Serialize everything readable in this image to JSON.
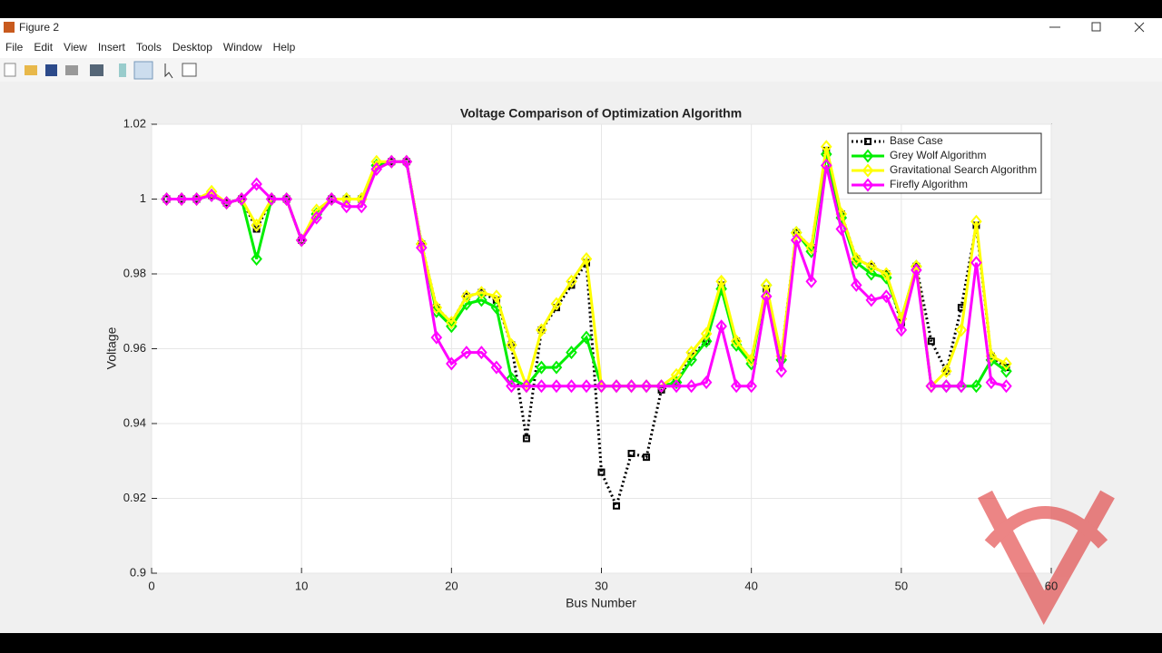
{
  "window": {
    "title": "Figure 2",
    "menu": [
      "File",
      "Edit",
      "View",
      "Insert",
      "Tools",
      "Desktop",
      "Window",
      "Help"
    ]
  },
  "chart_data": {
    "type": "line",
    "title": "Voltage Comparison of Optimization Algorithm",
    "x_label": "Bus Number",
    "y_label": "Voltage",
    "x": [
      1,
      2,
      3,
      4,
      5,
      6,
      7,
      8,
      9,
      10,
      11,
      12,
      13,
      14,
      15,
      16,
      17,
      18,
      19,
      20,
      21,
      22,
      23,
      24,
      25,
      26,
      27,
      28,
      29,
      30,
      31,
      32,
      33,
      34,
      35,
      36,
      37,
      38,
      39,
      40,
      41,
      42,
      43,
      44,
      45,
      46,
      47,
      48,
      49,
      50,
      51,
      52,
      53,
      54,
      55,
      56,
      57
    ],
    "series": [
      {
        "name": "Base Case",
        "color": "#000000",
        "values": [
          1.0,
          1.0,
          1.0,
          1.001,
          0.999,
          1.0,
          0.992,
          1.0,
          1.0,
          0.989,
          0.996,
          1.0,
          1.0,
          1.0,
          1.009,
          1.01,
          1.01,
          0.988,
          0.971,
          0.967,
          0.974,
          0.975,
          0.973,
          0.961,
          0.936,
          0.965,
          0.971,
          0.977,
          0.983,
          0.927,
          0.918,
          0.932,
          0.931,
          0.949,
          0.951,
          0.958,
          0.962,
          0.977,
          0.962,
          0.957,
          0.976,
          0.958,
          0.991,
          0.987,
          1.013,
          0.996,
          0.984,
          0.982,
          0.98,
          0.967,
          0.982,
          0.962,
          0.954,
          0.971,
          0.993,
          0.958,
          0.955
        ]
      },
      {
        "name": "Grey Wolf Algorithm",
        "color": "#00ee00",
        "values": [
          1.0,
          1.0,
          1.0,
          1.001,
          0.999,
          1.0,
          0.984,
          1.0,
          1.0,
          0.989,
          0.996,
          1.0,
          1.0,
          1.0,
          1.009,
          1.01,
          1.01,
          0.988,
          0.97,
          0.966,
          0.972,
          0.973,
          0.971,
          0.952,
          0.95,
          0.955,
          0.955,
          0.959,
          0.963,
          0.95,
          0.95,
          0.95,
          0.95,
          0.95,
          0.951,
          0.957,
          0.962,
          0.976,
          0.961,
          0.956,
          0.977,
          0.957,
          0.991,
          0.986,
          1.012,
          0.995,
          0.983,
          0.98,
          0.979,
          0.968,
          0.982,
          0.95,
          0.95,
          0.95,
          0.95,
          0.957,
          0.954
        ]
      },
      {
        "name": "Gravitational Search Algorithm",
        "color": "#ffff00",
        "values": [
          1.0,
          1.0,
          1.0,
          1.002,
          0.999,
          1.0,
          0.993,
          1.0,
          1.0,
          0.989,
          0.997,
          1.0,
          1.0,
          1.0,
          1.01,
          1.01,
          1.01,
          0.988,
          0.971,
          0.967,
          0.974,
          0.975,
          0.974,
          0.961,
          0.95,
          0.965,
          0.972,
          0.978,
          0.984,
          0.95,
          0.95,
          0.95,
          0.95,
          0.95,
          0.953,
          0.959,
          0.964,
          0.978,
          0.962,
          0.957,
          0.977,
          0.958,
          0.991,
          0.987,
          1.014,
          0.996,
          0.984,
          0.982,
          0.98,
          0.968,
          0.982,
          0.95,
          0.954,
          0.965,
          0.994,
          0.958,
          0.956
        ]
      },
      {
        "name": "Firefly Algorithm",
        "color": "#ff00ff",
        "values": [
          1.0,
          1.0,
          1.0,
          1.001,
          0.999,
          1.0,
          1.004,
          1.0,
          1.0,
          0.989,
          0.995,
          1.0,
          0.998,
          0.998,
          1.008,
          1.01,
          1.01,
          0.987,
          0.963,
          0.956,
          0.959,
          0.959,
          0.955,
          0.95,
          0.95,
          0.95,
          0.95,
          0.95,
          0.95,
          0.95,
          0.95,
          0.95,
          0.95,
          0.95,
          0.95,
          0.95,
          0.951,
          0.966,
          0.95,
          0.95,
          0.974,
          0.954,
          0.989,
          0.978,
          1.009,
          0.992,
          0.977,
          0.973,
          0.974,
          0.965,
          0.981,
          0.95,
          0.95,
          0.95,
          0.983,
          0.951,
          0.95
        ]
      }
    ],
    "xlim": [
      0,
      60
    ],
    "xticks": [
      0,
      10,
      20,
      30,
      40,
      50,
      60
    ],
    "ylim": [
      0.9,
      1.02
    ],
    "yticks": [
      0.9,
      0.92,
      0.94,
      0.96,
      0.98,
      1,
      1.02
    ],
    "grid": true,
    "legend": "northeast"
  }
}
